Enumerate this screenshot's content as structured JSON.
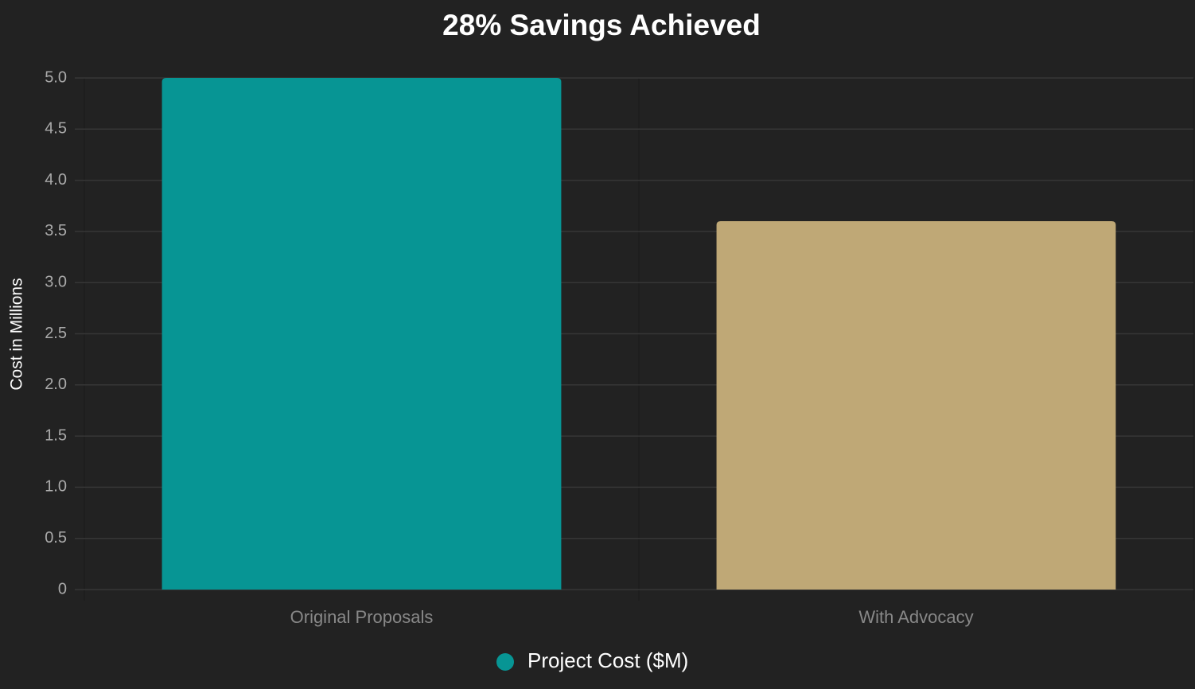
{
  "chart_data": {
    "type": "bar",
    "title": "28% Savings Achieved",
    "y_label": "Cost in Millions",
    "categories": [
      "Original Proposals",
      "With Advocacy"
    ],
    "series": [
      {
        "name": "Project Cost ($M)",
        "colors": [
          "#079594",
          "#bfa876"
        ],
        "values": [
          5.0,
          3.6
        ]
      }
    ],
    "ylim": [
      0,
      5
    ],
    "yticks": [
      0,
      0.5,
      {
        "value": 1,
        "label": "1.0"
      },
      1.5,
      {
        "value": 2,
        "label": "2.0"
      },
      2.5,
      {
        "value": 3,
        "label": "3.0"
      },
      3.5,
      {
        "value": 4,
        "label": "4.0"
      },
      4.5,
      {
        "value": 5,
        "label": "5.0"
      }
    ],
    "grid": true,
    "legend": "bottom"
  }
}
